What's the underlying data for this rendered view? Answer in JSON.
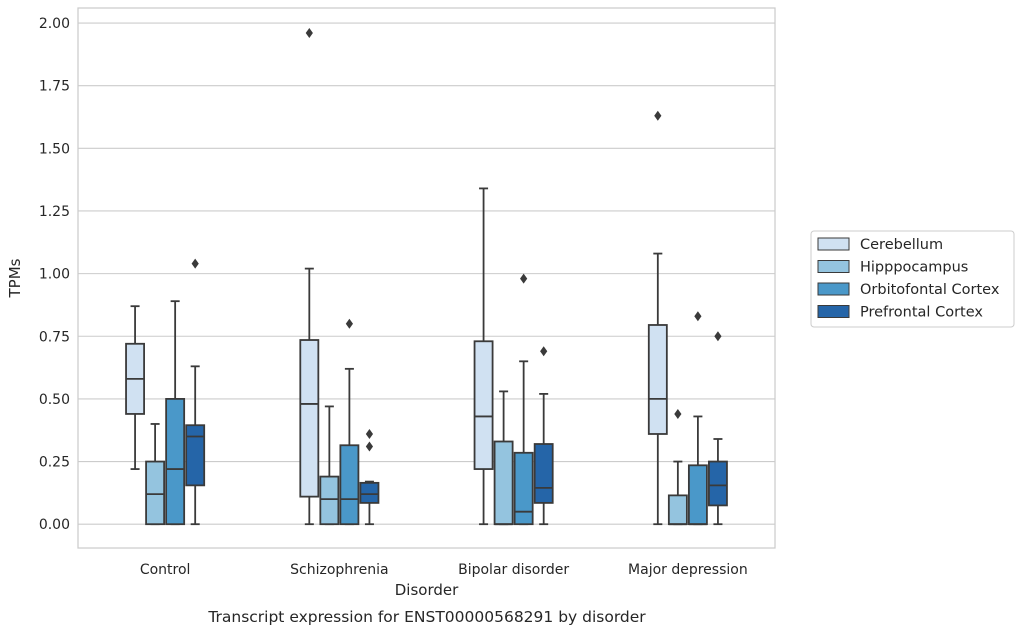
{
  "chart_data": {
    "type": "box",
    "caption": "Transcript expression for ENST00000568291 by disorder",
    "xlabel": "Disorder",
    "ylabel": "TPMs",
    "ylim": [
      -0.095,
      2.06
    ],
    "yticks": [
      "0.00",
      "0.25",
      "0.50",
      "0.75",
      "1.00",
      "1.25",
      "1.50",
      "1.75",
      "2.00"
    ],
    "grid": "horizontal",
    "legend_position": "right",
    "categories": [
      "Control",
      "Schizophrenia",
      "Bipolar disorder",
      "Major depression"
    ],
    "series": [
      {
        "name": "Cerebellum",
        "color": "#d0e1f2",
        "boxes": [
          {
            "q1": 0.44,
            "median": 0.58,
            "q3": 0.72,
            "whisker_low": 0.22,
            "whisker_high": 0.87,
            "outliers": []
          },
          {
            "q1": 0.11,
            "median": 0.48,
            "q3": 0.735,
            "whisker_low": 0.0,
            "whisker_high": 1.02,
            "outliers": [
              1.96
            ]
          },
          {
            "q1": 0.22,
            "median": 0.43,
            "q3": 0.73,
            "whisker_low": 0.0,
            "whisker_high": 1.34,
            "outliers": []
          },
          {
            "q1": 0.36,
            "median": 0.5,
            "q3": 0.795,
            "whisker_low": 0.0,
            "whisker_high": 1.08,
            "outliers": [
              1.63
            ]
          }
        ]
      },
      {
        "name": "Hipppocampus",
        "color": "#94c4df",
        "boxes": [
          {
            "q1": 0.0,
            "median": 0.12,
            "q3": 0.25,
            "whisker_low": 0.0,
            "whisker_high": 0.4,
            "outliers": []
          },
          {
            "q1": 0.0,
            "median": 0.1,
            "q3": 0.19,
            "whisker_low": 0.0,
            "whisker_high": 0.47,
            "outliers": []
          },
          {
            "q1": 0.0,
            "median": 0.0,
            "q3": 0.33,
            "whisker_low": 0.0,
            "whisker_high": 0.53,
            "outliers": []
          },
          {
            "q1": 0.0,
            "median": 0.0,
            "q3": 0.115,
            "whisker_low": 0.0,
            "whisker_high": 0.25,
            "outliers": [
              0.44
            ]
          }
        ]
      },
      {
        "name": "Orbitofontal Cortex",
        "color": "#4a98c9",
        "boxes": [
          {
            "q1": 0.0,
            "median": 0.22,
            "q3": 0.5,
            "whisker_low": 0.0,
            "whisker_high": 0.89,
            "outliers": []
          },
          {
            "q1": 0.0,
            "median": 0.1,
            "q3": 0.315,
            "whisker_low": 0.0,
            "whisker_high": 0.62,
            "outliers": [
              0.8
            ]
          },
          {
            "q1": 0.0,
            "median": 0.05,
            "q3": 0.285,
            "whisker_low": 0.0,
            "whisker_high": 0.65,
            "outliers": [
              0.98
            ]
          },
          {
            "q1": 0.0,
            "median": 0.0,
            "q3": 0.235,
            "whisker_low": 0.0,
            "whisker_high": 0.43,
            "outliers": [
              0.83
            ]
          }
        ]
      },
      {
        "name": "Prefrontal Cortex",
        "color": "#2565a8",
        "boxes": [
          {
            "q1": 0.155,
            "median": 0.35,
            "q3": 0.395,
            "whisker_low": 0.0,
            "whisker_high": 0.63,
            "outliers": [
              1.04
            ]
          },
          {
            "q1": 0.085,
            "median": 0.12,
            "q3": 0.165,
            "whisker_low": 0.0,
            "whisker_high": 0.17,
            "outliers": [
              0.31,
              0.36
            ]
          },
          {
            "q1": 0.085,
            "median": 0.145,
            "q3": 0.32,
            "whisker_low": 0.0,
            "whisker_high": 0.52,
            "outliers": [
              0.69
            ]
          },
          {
            "q1": 0.075,
            "median": 0.155,
            "q3": 0.25,
            "whisker_low": 0.0,
            "whisker_high": 0.34,
            "outliers": [
              0.75
            ]
          }
        ]
      }
    ]
  }
}
